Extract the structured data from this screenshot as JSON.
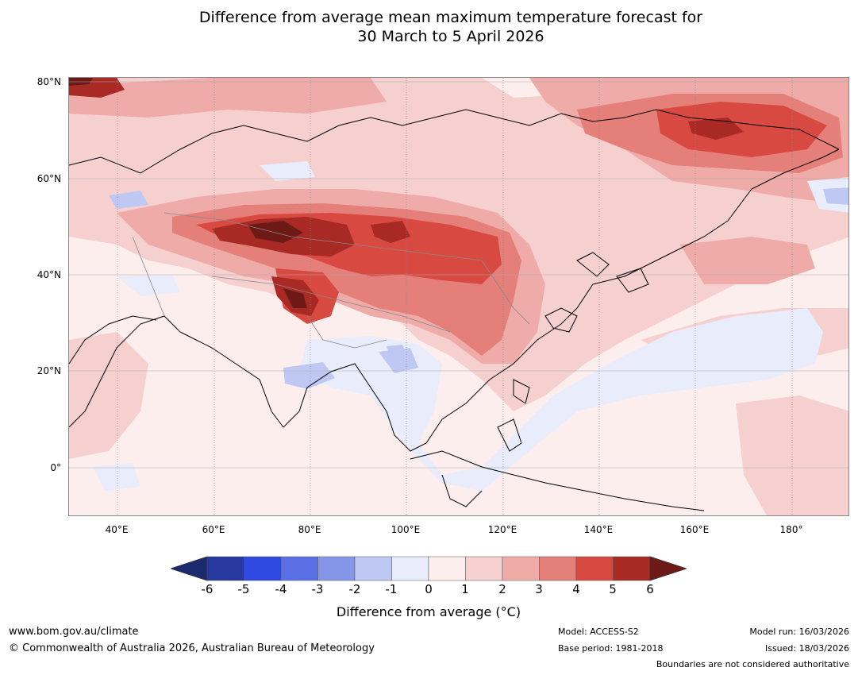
{
  "title": {
    "line1": "Difference from average mean maximum temperature forecast for",
    "line2": "30 March to 5 April 2026"
  },
  "map": {
    "region": "Asia",
    "lat_labels": [
      "80°N",
      "60°N",
      "40°N",
      "20°N",
      "0°"
    ],
    "lon_labels": [
      "40°E",
      "60°E",
      "80°E",
      "100°E",
      "120°E",
      "140°E",
      "160°E",
      "180°"
    ]
  },
  "colorbar": {
    "ticks": [
      "-6",
      "-5",
      "-4",
      "-3",
      "-2",
      "-1",
      "0",
      "1",
      "2",
      "3",
      "4",
      "5",
      "6"
    ],
    "colors": [
      "#27389f",
      "#2f4ae0",
      "#5a70e4",
      "#8596e8",
      "#bfc8f3",
      "#e8ecfb",
      "#fdeeee",
      "#f6d0cf",
      "#eeaba8",
      "#e57f7a",
      "#d84a41",
      "#a92a24"
    ],
    "low_arrow_color": "#1b2a6e",
    "high_arrow_color": "#6d1a17",
    "label": "Difference from average (°C)"
  },
  "footer": {
    "website": "www.bom.gov.au/climate",
    "copyright": "© Commonwealth of Australia 2026, Australian Bureau of Meteorology",
    "model": "Model: ACCESS-S2",
    "base_period": "Base period: 1981-2018",
    "model_run": "Model run: 16/03/2026",
    "issued": "Issued: 18/03/2026",
    "disclaimer": "Boundaries are not considered authoritative"
  }
}
